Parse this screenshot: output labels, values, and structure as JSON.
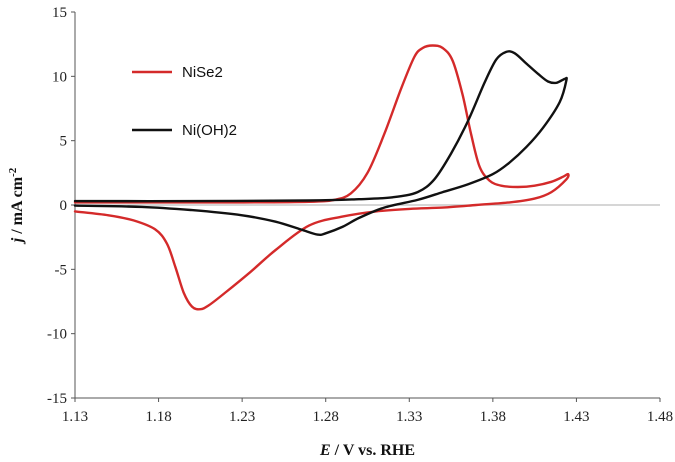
{
  "chart_data": {
    "type": "line",
    "xlabel": {
      "italic": "E",
      "rest": " / V vs. RHE"
    },
    "ylabel": {
      "italic": "j",
      "rest": " / mA cm",
      "sup": "-2"
    },
    "xlim": [
      1.13,
      1.48
    ],
    "ylim": [
      -15,
      15
    ],
    "xticks": [
      "1.13",
      "1.18",
      "1.23",
      "1.28",
      "1.33",
      "1.38",
      "1.43",
      "1.48"
    ],
    "yticks": [
      "-15",
      "-10",
      "-5",
      "0",
      "5",
      "10",
      "15"
    ],
    "grid": false,
    "zero_line": true,
    "legend": "upper-left",
    "series": [
      {
        "name": "NiSe2",
        "color": "#d42a2a",
        "points": [
          [
            1.13,
            0.2
          ],
          [
            1.18,
            0.2
          ],
          [
            1.23,
            0.2
          ],
          [
            1.27,
            0.25
          ],
          [
            1.285,
            0.4
          ],
          [
            1.295,
            0.9
          ],
          [
            1.305,
            2.5
          ],
          [
            1.315,
            5.5
          ],
          [
            1.325,
            9.0
          ],
          [
            1.333,
            11.5
          ],
          [
            1.338,
            12.2
          ],
          [
            1.344,
            12.4
          ],
          [
            1.35,
            12.2
          ],
          [
            1.356,
            11.2
          ],
          [
            1.362,
            8.5
          ],
          [
            1.367,
            5.5
          ],
          [
            1.372,
            3.0
          ],
          [
            1.378,
            1.9
          ],
          [
            1.385,
            1.5
          ],
          [
            1.395,
            1.4
          ],
          [
            1.405,
            1.5
          ],
          [
            1.415,
            1.8
          ],
          [
            1.422,
            2.2
          ],
          [
            1.425,
            2.4
          ],
          [
            1.424,
            2.0
          ],
          [
            1.415,
            1.0
          ],
          [
            1.405,
            0.5
          ],
          [
            1.39,
            0.2
          ],
          [
            1.37,
            0.0
          ],
          [
            1.35,
            -0.2
          ],
          [
            1.33,
            -0.3
          ],
          [
            1.31,
            -0.5
          ],
          [
            1.29,
            -0.9
          ],
          [
            1.27,
            -1.6
          ],
          [
            1.25,
            -3.5
          ],
          [
            1.235,
            -5.2
          ],
          [
            1.22,
            -6.8
          ],
          [
            1.21,
            -7.8
          ],
          [
            1.205,
            -8.1
          ],
          [
            1.2,
            -7.9
          ],
          [
            1.195,
            -6.8
          ],
          [
            1.19,
            -4.8
          ],
          [
            1.185,
            -3.0
          ],
          [
            1.178,
            -1.9
          ],
          [
            1.165,
            -1.2
          ],
          [
            1.15,
            -0.8
          ],
          [
            1.13,
            -0.5
          ]
        ]
      },
      {
        "name": "Ni(OH)2",
        "color": "#111111",
        "points": [
          [
            1.13,
            0.3
          ],
          [
            1.2,
            0.3
          ],
          [
            1.27,
            0.35
          ],
          [
            1.3,
            0.45
          ],
          [
            1.32,
            0.6
          ],
          [
            1.335,
            1.0
          ],
          [
            1.345,
            2.0
          ],
          [
            1.355,
            4.0
          ],
          [
            1.365,
            6.5
          ],
          [
            1.375,
            9.5
          ],
          [
            1.382,
            11.3
          ],
          [
            1.388,
            11.9
          ],
          [
            1.393,
            11.8
          ],
          [
            1.4,
            11.0
          ],
          [
            1.407,
            10.2
          ],
          [
            1.413,
            9.6
          ],
          [
            1.418,
            9.5
          ],
          [
            1.423,
            9.8
          ],
          [
            1.424,
            9.7
          ],
          [
            1.42,
            8.0
          ],
          [
            1.41,
            6.0
          ],
          [
            1.4,
            4.5
          ],
          [
            1.39,
            3.3
          ],
          [
            1.38,
            2.4
          ],
          [
            1.365,
            1.6
          ],
          [
            1.35,
            1.0
          ],
          [
            1.335,
            0.4
          ],
          [
            1.315,
            -0.2
          ],
          [
            1.3,
            -1.0
          ],
          [
            1.29,
            -1.7
          ],
          [
            1.28,
            -2.2
          ],
          [
            1.275,
            -2.3
          ],
          [
            1.265,
            -1.9
          ],
          [
            1.25,
            -1.3
          ],
          [
            1.23,
            -0.8
          ],
          [
            1.2,
            -0.4
          ],
          [
            1.17,
            -0.15
          ],
          [
            1.13,
            -0.05
          ]
        ]
      }
    ]
  }
}
